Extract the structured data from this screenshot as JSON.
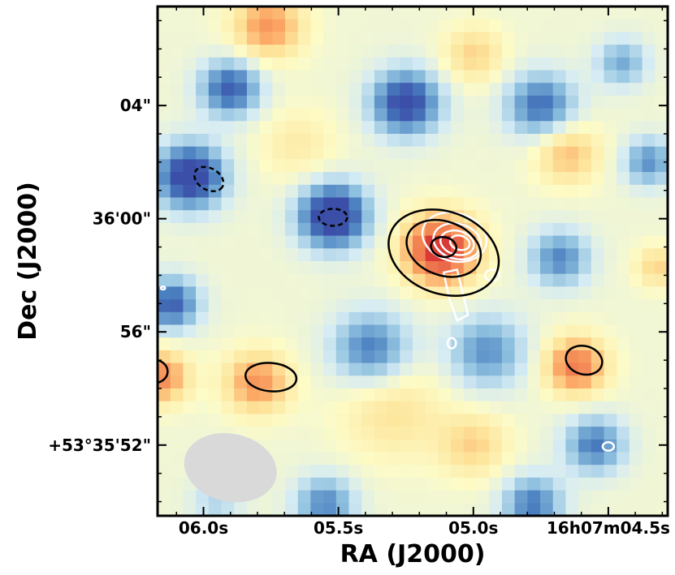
{
  "chart_data": {
    "type": "heatmap",
    "xlabel": "RA (J2000)",
    "ylabel": "Dec (J2000)",
    "x_ticks": [
      {
        "label": "06.0s",
        "ra_s": 6.0
      },
      {
        "label": "05.5s",
        "ra_s": 5.5
      },
      {
        "label": "05.0s",
        "ra_s": 5.0
      },
      {
        "label": "16h07m04.5s",
        "ra_s": 4.5
      }
    ],
    "y_ticks": [
      {
        "label": "04\"",
        "dec_arcsec": 4
      },
      {
        "label": "36'00\"",
        "dec_arcsec": 0
      },
      {
        "label": "56\"",
        "dec_arcsec": -4
      },
      {
        "label": "+53°35'52\"",
        "dec_arcsec": -8
      }
    ],
    "ra_range_s": [
      6.17,
      4.28
    ],
    "dec_range_arcsec": [
      -10.5,
      7.5
    ],
    "colormap": [
      "#3b4fa8",
      "#4a7fc0",
      "#8cbfde",
      "#d6ecf4",
      "#fdfbc6",
      "#fde49a",
      "#fcaa67",
      "#f07d50",
      "#d93a36"
    ],
    "grid": false,
    "beam": {
      "ra_center_s": 5.9,
      "dec_center_arcsec": -8.8,
      "major_arcsec": 3.3,
      "minor_arcsec": 2.4,
      "color": "#d9d9d9"
    },
    "field": {
      "background": 0.46,
      "blobs": [
        {
          "ra": 5.76,
          "dec": 6.8,
          "amp": 0.34,
          "s": 0.8
        },
        {
          "ra": 5.0,
          "dec": 5.8,
          "amp": 0.2,
          "s": 0.7
        },
        {
          "ra": 4.45,
          "dec": 5.5,
          "amp": -0.25,
          "s": 0.6
        },
        {
          "ra": 5.9,
          "dec": 4.6,
          "amp": -0.42,
          "s": 0.7
        },
        {
          "ra": 5.25,
          "dec": 4.1,
          "amp": -0.5,
          "s": 0.8
        },
        {
          "ra": 4.75,
          "dec": 4.0,
          "amp": -0.38,
          "s": 0.8
        },
        {
          "ra": 6.05,
          "dec": 1.5,
          "amp": -0.55,
          "s": 0.8
        },
        {
          "ra": 5.52,
          "dec": 0.1,
          "amp": -0.58,
          "s": 0.8
        },
        {
          "ra": 4.65,
          "dec": 2.3,
          "amp": 0.25,
          "s": 0.75
        },
        {
          "ra": 5.65,
          "dec": 2.6,
          "amp": 0.12,
          "s": 0.9
        },
        {
          "ra": 4.35,
          "dec": 2.0,
          "amp": -0.3,
          "s": 0.6
        },
        {
          "ra": 5.12,
          "dec": -1.1,
          "amp": 0.6,
          "s": 0.85
        },
        {
          "ra": 4.68,
          "dec": -1.4,
          "amp": -0.32,
          "s": 0.7
        },
        {
          "ra": 4.32,
          "dec": -1.7,
          "amp": 0.2,
          "s": 0.5
        },
        {
          "ra": 6.12,
          "dec": -3.0,
          "amp": -0.42,
          "s": 0.65
        },
        {
          "ra": 5.38,
          "dec": -4.6,
          "amp": -0.35,
          "s": 0.9
        },
        {
          "ra": 4.95,
          "dec": -4.7,
          "amp": -0.3,
          "s": 0.9
        },
        {
          "ra": 4.62,
          "dec": -5.2,
          "amp": 0.42,
          "s": 0.7
        },
        {
          "ra": 6.16,
          "dec": -5.6,
          "amp": 0.38,
          "s": 0.65
        },
        {
          "ra": 5.8,
          "dec": -5.8,
          "amp": 0.35,
          "s": 0.75
        },
        {
          "ra": 5.3,
          "dec": -6.8,
          "amp": 0.16,
          "s": 1.2
        },
        {
          "ra": 5.0,
          "dec": -8.0,
          "amp": 0.2,
          "s": 0.8
        },
        {
          "ra": 4.55,
          "dec": -8.0,
          "amp": -0.35,
          "s": 0.7
        },
        {
          "ra": 4.78,
          "dec": -10.1,
          "amp": -0.35,
          "s": 0.7
        },
        {
          "ra": 5.55,
          "dec": -10.1,
          "amp": -0.32,
          "s": 0.7
        },
        {
          "ra": 5.95,
          "dec": -10.0,
          "amp": -0.15,
          "s": 0.6
        }
      ]
    },
    "contours": {
      "black_solid": [
        {
          "ra": 5.11,
          "dec": -1.2,
          "rx_arcsec": 2.0,
          "ry_arcsec": 1.45,
          "angle_deg": 20
        },
        {
          "ra": 5.11,
          "dec": -1.05,
          "rx_arcsec": 1.35,
          "ry_arcsec": 0.95,
          "angle_deg": 20
        },
        {
          "ra": 5.11,
          "dec": -1.0,
          "rx_arcsec": 0.45,
          "ry_arcsec": 0.35,
          "angle_deg": 10
        },
        {
          "ra": 4.59,
          "dec": -5.0,
          "rx_arcsec": 0.65,
          "ry_arcsec": 0.5,
          "angle_deg": 15
        },
        {
          "ra": 5.75,
          "dec": -5.6,
          "rx_arcsec": 0.9,
          "ry_arcsec": 0.5,
          "angle_deg": 5
        },
        {
          "ra": 6.18,
          "dec": -5.4,
          "rx_arcsec": 0.45,
          "ry_arcsec": 0.4,
          "angle_deg": 0
        }
      ],
      "black_dashed": [
        {
          "ra": 5.98,
          "dec": 1.4,
          "rx_arcsec": 0.55,
          "ry_arcsec": 0.38,
          "angle_deg": 30
        },
        {
          "ra": 5.52,
          "dec": 0.05,
          "rx_arcsec": 0.5,
          "ry_arcsec": 0.3,
          "angle_deg": 0
        }
      ],
      "white_solid": [
        {
          "ra": 5.07,
          "dec": -0.65,
          "rx_arcsec": 1.15,
          "ry_arcsec": 0.85,
          "angle_deg": 15
        },
        {
          "ra": 5.06,
          "dec": -0.8,
          "rx_arcsec": 0.85,
          "ry_arcsec": 0.62,
          "angle_deg": 15
        },
        {
          "ra": 5.06,
          "dec": -0.85,
          "rx_arcsec": 0.6,
          "ry_arcsec": 0.42,
          "angle_deg": 15
        },
        {
          "ra": 5.05,
          "dec": -0.85,
          "rx_arcsec": 0.35,
          "ry_arcsec": 0.25,
          "angle_deg": 15
        },
        {
          "ra": 4.93,
          "dec": -2.0,
          "rx_arcsec": 0.25,
          "ry_arcsec": 0.2,
          "angle_deg": 0
        },
        {
          "ra": 5.08,
          "dec": -4.4,
          "rx_arcsec": 0.15,
          "ry_arcsec": 0.18,
          "angle_deg": 0
        },
        {
          "ra": 4.5,
          "dec": -8.05,
          "rx_arcsec": 0.2,
          "ry_arcsec": 0.15,
          "angle_deg": 0
        },
        {
          "ra": 6.15,
          "dec": -2.45,
          "rx_arcsec": 0.08,
          "ry_arcsec": 0.05,
          "angle_deg": 0
        }
      ],
      "white_tail": [
        [
          5.06,
          -1.8
        ],
        [
          5.04,
          -2.6
        ],
        [
          5.02,
          -3.4
        ],
        [
          5.06,
          -3.6
        ],
        [
          5.09,
          -2.8
        ],
        [
          5.11,
          -1.9
        ]
      ]
    }
  }
}
